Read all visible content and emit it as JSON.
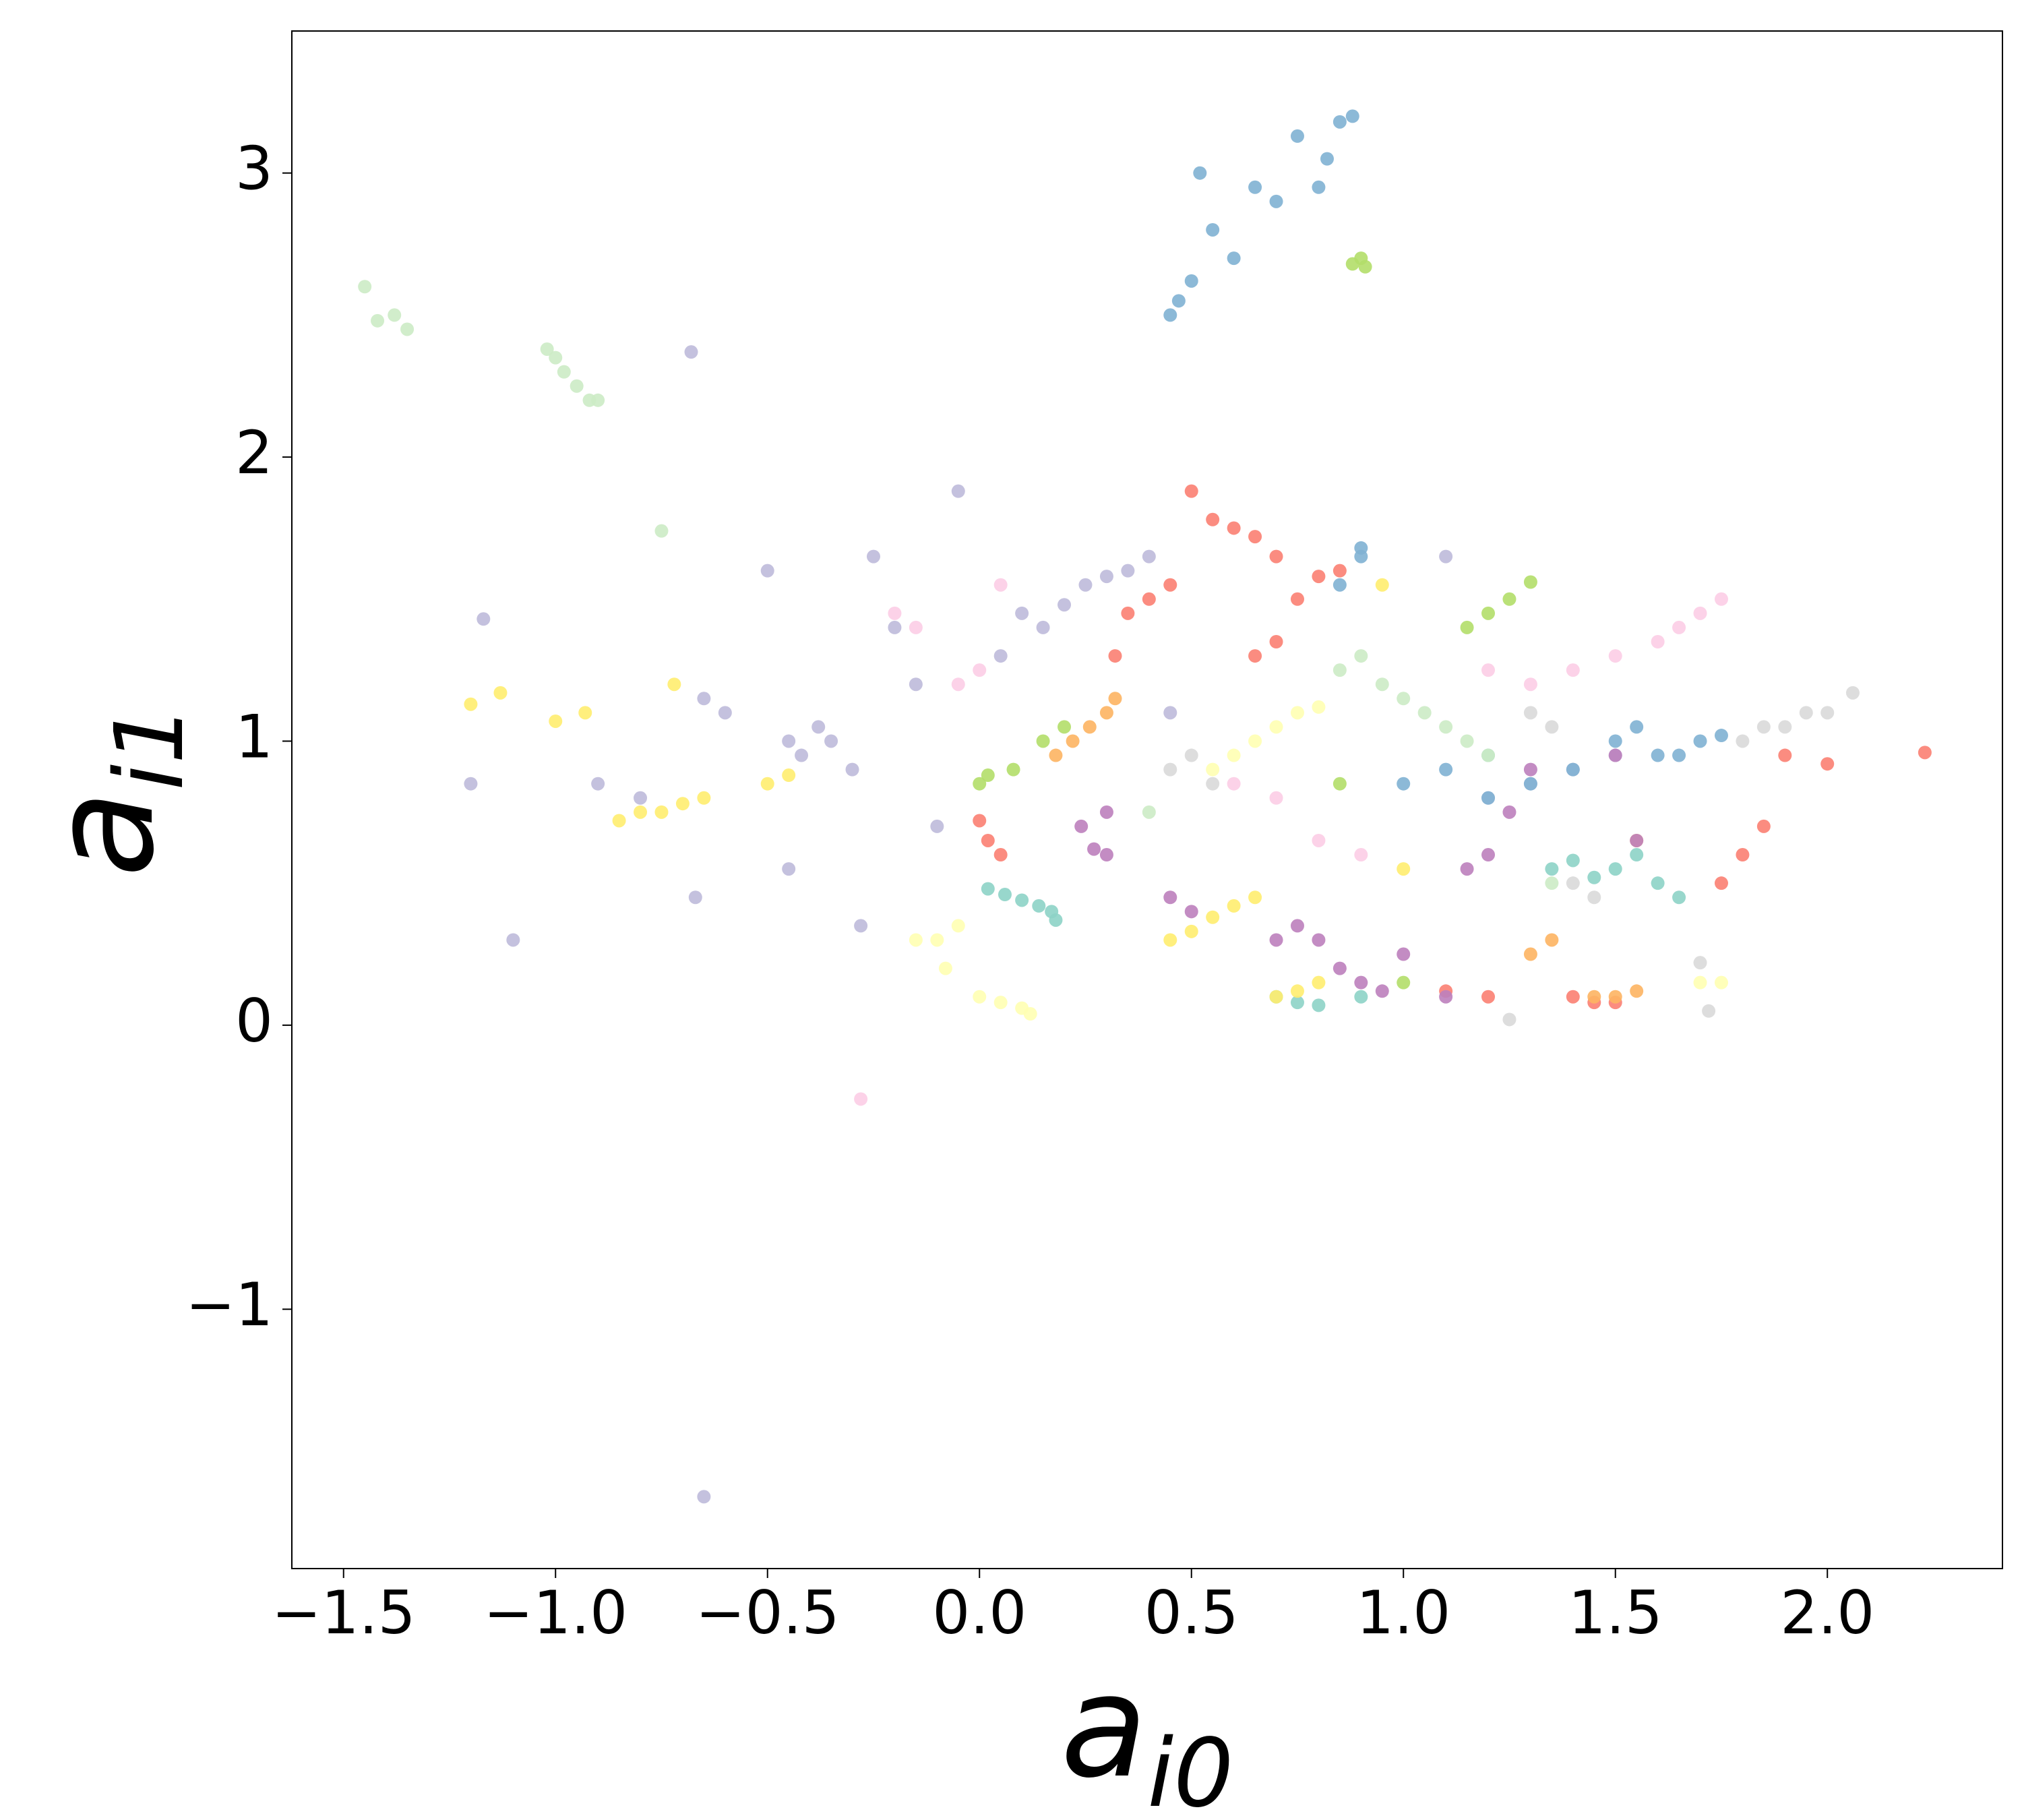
{
  "chart_data": {
    "type": "scatter",
    "xlabel": "a",
    "xlabel_subscript": "i0",
    "ylabel": "a",
    "ylabel_subscript": "i1",
    "xlim": [
      -1.622,
      2.413
    ],
    "ylim": [
      -1.913,
      3.5
    ],
    "xticks": [
      {
        "value": -1.5,
        "label": "−1.5"
      },
      {
        "value": -1.0,
        "label": "−1.0"
      },
      {
        "value": -0.5,
        "label": "−0.5"
      },
      {
        "value": 0,
        "label": "0.0"
      },
      0.5,
      {
        "value": 1,
        "label": "1.0"
      },
      1.5,
      {
        "value": 2,
        "label": "2.0"
      }
    ],
    "yticks": [
      {
        "value": -1,
        "label": "−1"
      },
      0,
      1,
      2,
      3
    ],
    "grid": false,
    "series": [
      {
        "color": "#8dd3c7",
        "x": [
          0.02,
          0.06,
          0.1,
          0.14,
          0.17,
          0.18,
          0.7,
          0.75,
          0.8,
          0.9,
          1.35,
          1.4,
          1.45,
          1.5,
          1.55,
          1.6,
          1.65,
          1.2
        ],
        "y": [
          0.48,
          0.46,
          0.44,
          0.42,
          0.4,
          0.37,
          0.1,
          0.08,
          0.07,
          0.1,
          0.55,
          0.58,
          0.52,
          0.55,
          0.6,
          0.5,
          0.45,
          0.95
        ]
      },
      {
        "color": "#ffffb3",
        "x": [
          -0.15,
          -0.1,
          -0.05,
          0.0,
          0.05,
          0.1,
          0.12,
          0.6,
          0.65,
          0.7,
          0.75,
          0.8,
          0.55,
          1.7,
          1.75,
          -0.08
        ],
        "y": [
          0.3,
          0.3,
          0.35,
          0.1,
          0.08,
          0.06,
          0.04,
          0.95,
          1.0,
          1.05,
          1.1,
          1.12,
          0.9,
          0.15,
          0.15,
          0.2
        ]
      },
      {
        "color": "#bebada",
        "x": [
          -1.2,
          -1.17,
          -1.1,
          -0.9,
          -0.8,
          -0.68,
          -0.65,
          -0.6,
          -0.5,
          -0.45,
          -0.42,
          -0.38,
          -0.35,
          -0.3,
          -0.25,
          -0.2,
          -0.15,
          -0.1,
          -0.05,
          0.05,
          0.1,
          0.15,
          0.2,
          0.25,
          0.3,
          0.35,
          0.4,
          0.45,
          1.1,
          1.2,
          1.3,
          1.4,
          1.5,
          -0.65,
          -0.67,
          -0.45,
          -0.28
        ],
        "y": [
          0.85,
          1.43,
          0.3,
          0.85,
          0.8,
          2.37,
          1.15,
          1.1,
          1.6,
          1.0,
          0.95,
          1.05,
          1.0,
          0.9,
          1.65,
          1.4,
          1.2,
          0.7,
          1.88,
          1.3,
          1.45,
          1.4,
          1.48,
          1.55,
          1.58,
          1.6,
          1.65,
          1.1,
          1.65,
          0.8,
          0.85,
          0.9,
          0.95,
          -1.66,
          0.45,
          0.55,
          0.35
        ]
      },
      {
        "color": "#fb8072",
        "x": [
          0.0,
          0.02,
          0.05,
          0.5,
          0.55,
          0.6,
          0.65,
          0.7,
          0.65,
          0.7,
          0.75,
          0.8,
          0.35,
          0.4,
          0.45,
          0.32,
          1.75,
          1.8,
          1.85,
          1.9,
          2.0,
          2.23,
          1.4,
          1.45,
          1.5,
          1.2,
          0.85,
          1.1
        ],
        "y": [
          0.72,
          0.65,
          0.6,
          1.88,
          1.78,
          1.75,
          1.72,
          1.65,
          1.3,
          1.35,
          1.5,
          1.58,
          1.45,
          1.5,
          1.55,
          1.3,
          0.5,
          0.6,
          0.7,
          0.95,
          0.92,
          0.96,
          0.1,
          0.08,
          0.08,
          0.1,
          1.6,
          0.12
        ]
      },
      {
        "color": "#80b1d3",
        "x": [
          0.45,
          0.47,
          0.5,
          0.52,
          0.55,
          0.6,
          0.65,
          0.7,
          0.75,
          0.8,
          0.82,
          0.85,
          0.88,
          0.9,
          1.0,
          1.1,
          1.2,
          1.3,
          1.4,
          1.5,
          1.55,
          1.6,
          1.65,
          1.7,
          1.75,
          0.85,
          0.9
        ],
        "y": [
          2.5,
          2.55,
          2.62,
          3.0,
          2.8,
          2.7,
          2.95,
          2.9,
          3.13,
          2.95,
          3.05,
          3.18,
          3.2,
          1.68,
          0.85,
          0.9,
          0.8,
          0.85,
          0.9,
          1.0,
          1.05,
          0.95,
          0.95,
          1.0,
          1.02,
          1.55,
          1.65
        ]
      },
      {
        "color": "#fdb462",
        "x": [
          0.18,
          0.22,
          0.26,
          0.3,
          0.32,
          1.45,
          1.5,
          1.55,
          1.3,
          1.35,
          1.55
        ],
        "y": [
          0.95,
          1.0,
          1.05,
          1.1,
          1.15,
          0.1,
          0.1,
          0.12,
          0.25,
          0.3,
          0.65
        ]
      },
      {
        "color": "#b3de69",
        "x": [
          0.0,
          0.02,
          0.08,
          0.15,
          0.2,
          0.88,
          0.9,
          0.91,
          1.15,
          1.2,
          1.25,
          1.3,
          0.85,
          1.0
        ],
        "y": [
          0.85,
          0.88,
          0.9,
          1.0,
          1.05,
          2.68,
          2.7,
          2.67,
          1.4,
          1.45,
          1.5,
          1.56,
          0.85,
          0.15
        ]
      },
      {
        "color": "#fccde5",
        "x": [
          -0.28,
          -0.2,
          -0.15,
          -0.05,
          0.0,
          0.05,
          0.6,
          0.7,
          0.8,
          0.9,
          1.4,
          1.5,
          1.6,
          1.65,
          1.7,
          1.75,
          1.2,
          1.3
        ],
        "y": [
          -0.26,
          1.45,
          1.4,
          1.2,
          1.25,
          1.55,
          0.85,
          0.8,
          0.65,
          0.6,
          1.25,
          1.3,
          1.35,
          1.4,
          1.45,
          1.5,
          1.25,
          1.2
        ]
      },
      {
        "color": "#d9d9d9",
        "x": [
          0.45,
          0.5,
          0.55,
          1.3,
          1.35,
          1.4,
          1.45,
          1.8,
          1.85,
          1.9,
          1.95,
          2.0,
          2.06,
          1.25,
          1.7,
          1.72
        ],
        "y": [
          0.9,
          0.95,
          0.85,
          1.1,
          1.05,
          0.5,
          0.45,
          1.0,
          1.05,
          1.05,
          1.1,
          1.1,
          1.17,
          0.02,
          0.22,
          0.05
        ]
      },
      {
        "color": "#bc80bd",
        "x": [
          0.24,
          0.27,
          0.3,
          0.45,
          0.5,
          0.7,
          0.75,
          0.8,
          0.85,
          0.9,
          0.95,
          1.0,
          1.1,
          1.15,
          1.2,
          1.25,
          1.3,
          1.5,
          1.55,
          0.3
        ],
        "y": [
          0.7,
          0.62,
          0.6,
          0.45,
          0.4,
          0.3,
          0.35,
          0.3,
          0.2,
          0.15,
          0.12,
          0.25,
          0.1,
          0.55,
          0.6,
          0.75,
          0.9,
          0.95,
          0.65,
          0.75
        ]
      },
      {
        "color": "#ccebc5",
        "x": [
          -1.45,
          -1.42,
          -1.38,
          -1.35,
          -1.02,
          -1.0,
          -0.98,
          -0.95,
          -0.92,
          -0.9,
          -0.75,
          0.85,
          0.9,
          0.95,
          1.0,
          1.05,
          1.1,
          1.15,
          1.2,
          1.35,
          0.4
        ],
        "y": [
          2.6,
          2.48,
          2.5,
          2.45,
          2.38,
          2.35,
          2.3,
          2.25,
          2.2,
          2.2,
          1.74,
          1.25,
          1.3,
          1.2,
          1.15,
          1.1,
          1.05,
          1.0,
          0.95,
          0.5,
          0.75
        ]
      },
      {
        "color": "#ffed6f",
        "x": [
          -1.2,
          -1.13,
          -1.0,
          -0.93,
          -0.85,
          -0.8,
          -0.75,
          -0.7,
          -0.65,
          -0.72,
          -0.5,
          -0.45,
          0.45,
          0.5,
          0.55,
          0.6,
          0.65,
          0.7,
          0.75,
          0.8,
          0.95,
          1.0
        ],
        "y": [
          1.13,
          1.17,
          1.07,
          1.1,
          0.72,
          0.75,
          0.75,
          0.78,
          0.8,
          1.2,
          0.85,
          0.88,
          0.3,
          0.33,
          0.38,
          0.42,
          0.45,
          0.1,
          0.12,
          0.15,
          1.55,
          0.55
        ]
      }
    ]
  }
}
